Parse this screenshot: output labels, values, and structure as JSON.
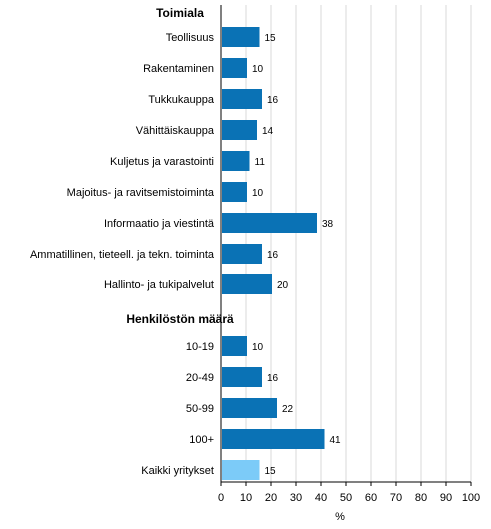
{
  "chart_data": {
    "type": "bar",
    "orientation": "horizontal",
    "groups": [
      {
        "heading": "Toimiala",
        "categories": [
          "Teollisuus",
          "Rakentaminen",
          "Tukkukauppa",
          "Vähittäiskauppa",
          "Kuljetus ja varastointi",
          "Majoitus- ja ravitsemistoiminta",
          "Informaatio ja viestintä",
          "Ammatillinen, tieteell. ja tekn. toiminta",
          "Hallinto- ja tukipalvelut"
        ],
        "values": [
          15,
          10,
          16,
          14,
          11,
          10,
          38,
          16,
          20
        ]
      },
      {
        "heading": "Henkilöstön määrä",
        "categories": [
          "10-19",
          "20-49",
          "50-99",
          "100+"
        ],
        "values": [
          10,
          16,
          22,
          41
        ]
      },
      {
        "heading": "",
        "categories": [
          "Kaikki yritykset"
        ],
        "values": [
          15
        ],
        "highlight": true
      }
    ],
    "xlabel": "%",
    "xlim": [
      0,
      100
    ],
    "xticks": [
      "0",
      "10",
      "20",
      "30",
      "40",
      "50",
      "60",
      "70",
      "80",
      "90",
      "100"
    ],
    "grid": true,
    "colors": {
      "bar": "#0a72b5",
      "highlight": "#7ccbf8",
      "grid": "#d9d9d9"
    }
  }
}
